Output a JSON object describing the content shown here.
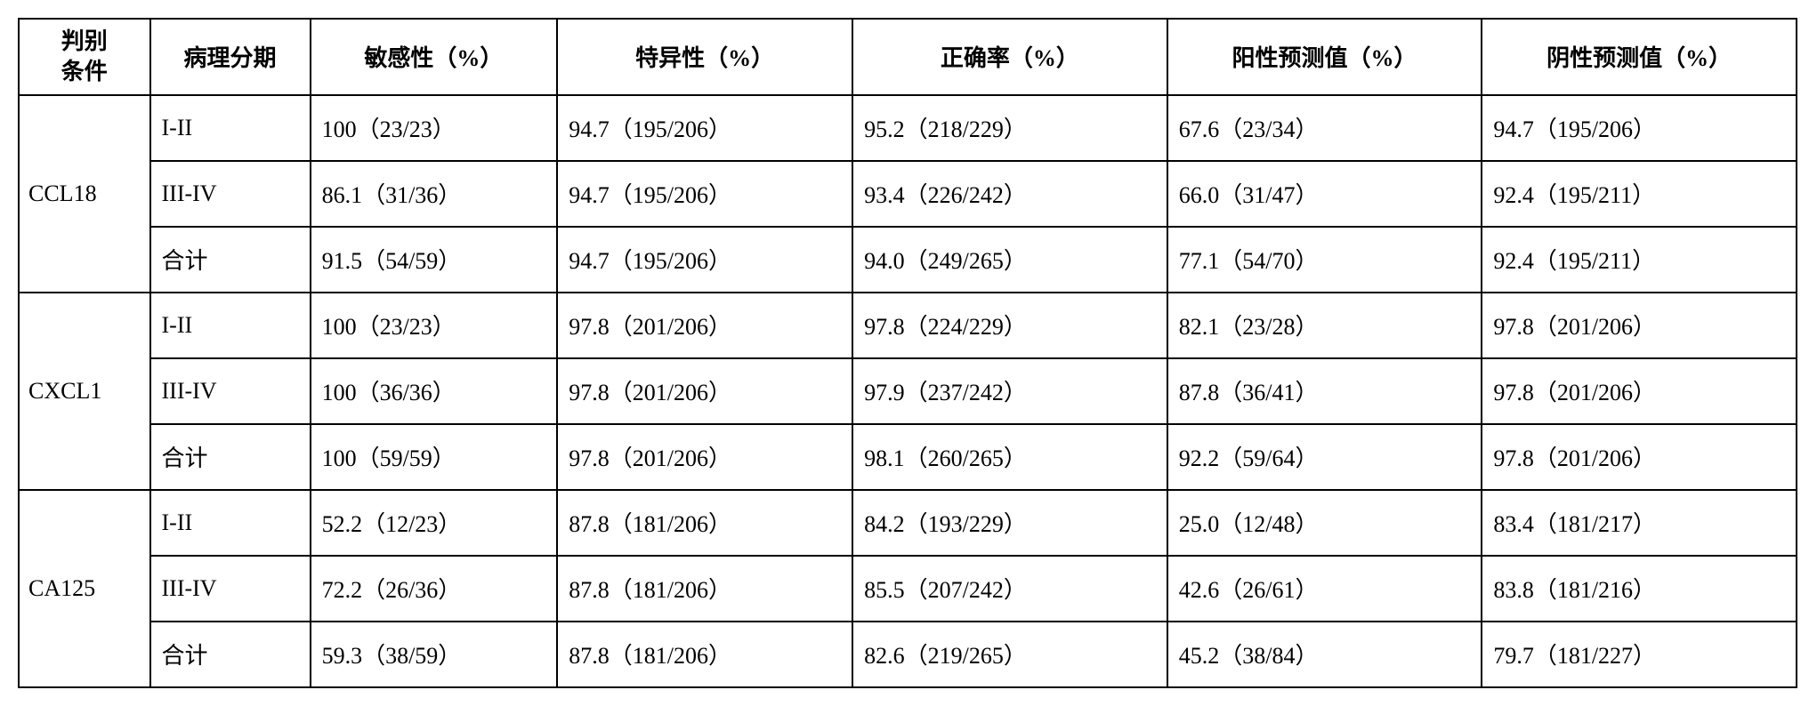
{
  "table": {
    "headers": {
      "criterion": "判别\n条件",
      "stage": "病理分期",
      "sensitivity": "敏感性（%）",
      "specificity": "特异性（%）",
      "accuracy": "正确率（%）",
      "ppv": "阳性预测值（%）",
      "npv": "阴性预测值（%）"
    },
    "groups": [
      {
        "marker": "CCL18",
        "rows": [
          {
            "stage": "I-II",
            "sensitivity": "100（23/23）",
            "specificity": "94.7（195/206）",
            "accuracy": "95.2（218/229）",
            "ppv": "67.6（23/34）",
            "npv": "94.7（195/206）"
          },
          {
            "stage": "III-IV",
            "sensitivity": "86.1（31/36）",
            "specificity": "94.7（195/206）",
            "accuracy": "93.4（226/242）",
            "ppv": "66.0（31/47）",
            "npv": "92.4（195/211）"
          },
          {
            "stage": "合计",
            "sensitivity": "91.5（54/59）",
            "specificity": "94.7（195/206）",
            "accuracy": "94.0（249/265）",
            "ppv": "77.1（54/70）",
            "npv": "92.4（195/211）"
          }
        ]
      },
      {
        "marker": "CXCL1",
        "rows": [
          {
            "stage": "I-II",
            "sensitivity": "100（23/23）",
            "specificity": "97.8（201/206）",
            "accuracy": "97.8（224/229）",
            "ppv": "82.1（23/28）",
            "npv": "97.8（201/206）"
          },
          {
            "stage": "III-IV",
            "sensitivity": "100（36/36）",
            "specificity": "97.8（201/206）",
            "accuracy": "97.9（237/242）",
            "ppv": "87.8（36/41）",
            "npv": "97.8（201/206）"
          },
          {
            "stage": "合计",
            "sensitivity": "100（59/59）",
            "specificity": "97.8（201/206）",
            "accuracy": "98.1（260/265）",
            "ppv": "92.2（59/64）",
            "npv": "97.8（201/206）"
          }
        ]
      },
      {
        "marker": "CA125",
        "rows": [
          {
            "stage": "I-II",
            "sensitivity": "52.2（12/23）",
            "specificity": "87.8（181/206）",
            "accuracy": "84.2（193/229）",
            "ppv": "25.0（12/48）",
            "npv": "83.4（181/217）"
          },
          {
            "stage": "III-IV",
            "sensitivity": "72.2（26/36）",
            "specificity": "87.8（181/206）",
            "accuracy": "85.5（207/242）",
            "ppv": "42.6（26/61）",
            "npv": "83.8（181/216）"
          },
          {
            "stage": "合计",
            "sensitivity": "59.3（38/59）",
            "specificity": "87.8（181/206）",
            "accuracy": "82.6（219/265）",
            "ppv": "45.2（38/84）",
            "npv": "79.7（181/227）"
          }
        ]
      }
    ]
  }
}
